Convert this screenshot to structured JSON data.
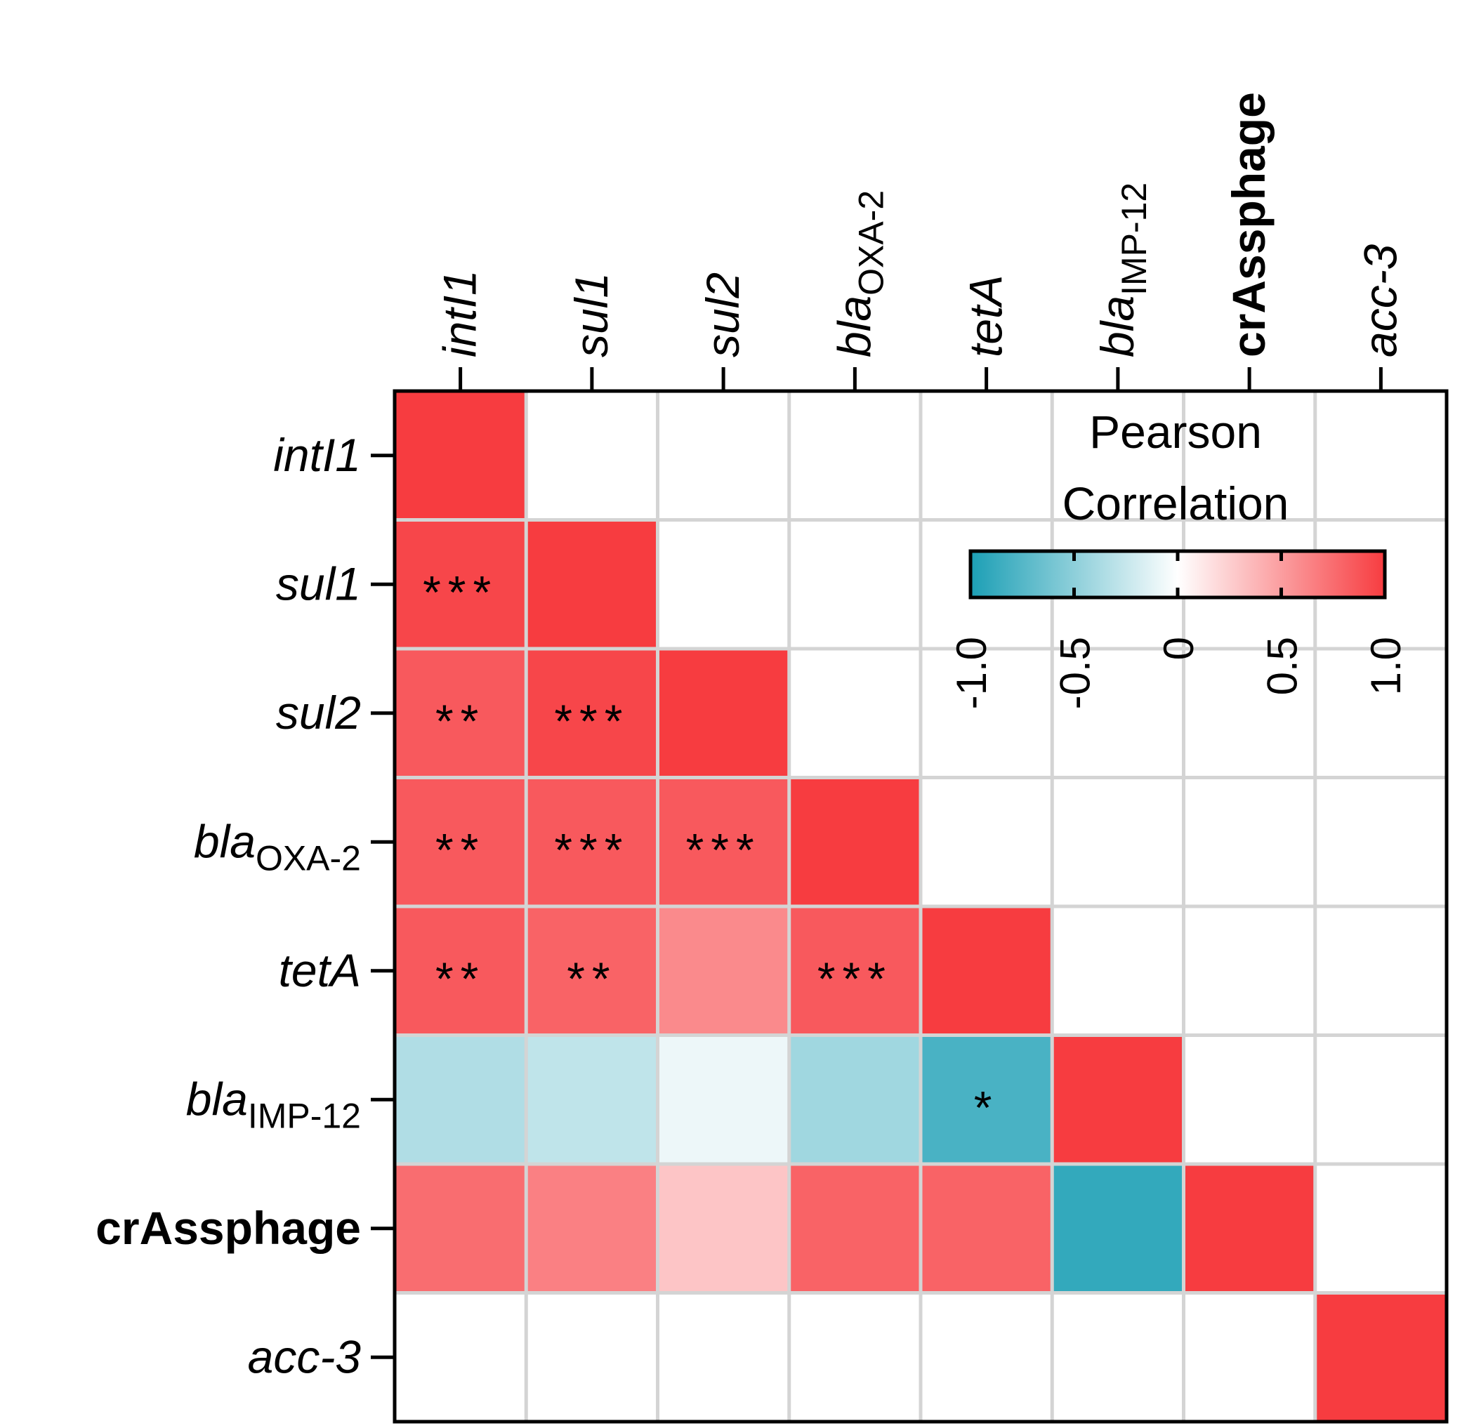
{
  "chart_data": {
    "type": "heatmap",
    "subtype": "lower-triangle correlation matrix",
    "variables": [
      {
        "base": "intI1",
        "sub": "",
        "style": "italic"
      },
      {
        "base": "sul1",
        "sub": "",
        "style": "italic"
      },
      {
        "base": "sul2",
        "sub": "",
        "style": "italic"
      },
      {
        "base": "bla",
        "sub": "OXA-2",
        "style": "italic"
      },
      {
        "base": "tetA",
        "sub": "",
        "style": "italic"
      },
      {
        "base": "bla",
        "sub": "IMP-12",
        "style": "italic"
      },
      {
        "base": "crAssphage",
        "sub": "",
        "style": "bold"
      },
      {
        "base": "acc-3",
        "sub": "",
        "style": "italic"
      }
    ],
    "values": [
      [
        1.0,
        null,
        null,
        null,
        null,
        null,
        null,
        null
      ],
      [
        0.95,
        1.0,
        null,
        null,
        null,
        null,
        null,
        null
      ],
      [
        0.85,
        0.95,
        1.0,
        null,
        null,
        null,
        null,
        null
      ],
      [
        0.85,
        0.85,
        0.85,
        1.0,
        null,
        null,
        null,
        null
      ],
      [
        0.85,
        0.8,
        0.6,
        0.85,
        1.0,
        null,
        null,
        null
      ],
      [
        -0.35,
        -0.28,
        -0.08,
        -0.42,
        -0.8,
        1.0,
        null,
        null
      ],
      [
        0.75,
        0.65,
        0.3,
        0.8,
        0.8,
        -0.9,
        1.0,
        null
      ],
      [
        null,
        null,
        null,
        null,
        null,
        null,
        null,
        1.0
      ]
    ],
    "significance": [
      [
        "",
        "",
        "",
        "",
        "",
        "",
        "",
        ""
      ],
      [
        "***",
        "",
        "",
        "",
        "",
        "",
        "",
        ""
      ],
      [
        "**",
        "***",
        "",
        "",
        "",
        "",
        "",
        ""
      ],
      [
        "**",
        "***",
        "***",
        "",
        "",
        "",
        "",
        ""
      ],
      [
        "**",
        "**",
        "",
        "***",
        "",
        "",
        "",
        ""
      ],
      [
        "",
        "",
        "",
        "",
        "*",
        "",
        "",
        ""
      ],
      [
        "",
        "",
        "",
        "",
        "",
        "",
        "",
        ""
      ],
      [
        "",
        "",
        "",
        "",
        "",
        "",
        "",
        ""
      ]
    ],
    "legend": {
      "title_line1": "Pearson",
      "title_line2": "Correlation",
      "range": [
        -1.0,
        1.0
      ],
      "ticks": [
        -1.0,
        -0.5,
        0,
        0.5,
        1.0
      ],
      "tick_labels": [
        "-1.0",
        "-0.5",
        "0",
        "0.5",
        "1.0"
      ],
      "placement": "top-right inside plot"
    },
    "colors": {
      "negative": "#1c9fb5",
      "neutral": "#ffffff",
      "positive": "#f73c40",
      "grid": "#d4d4d4",
      "frame": "#000000"
    }
  }
}
